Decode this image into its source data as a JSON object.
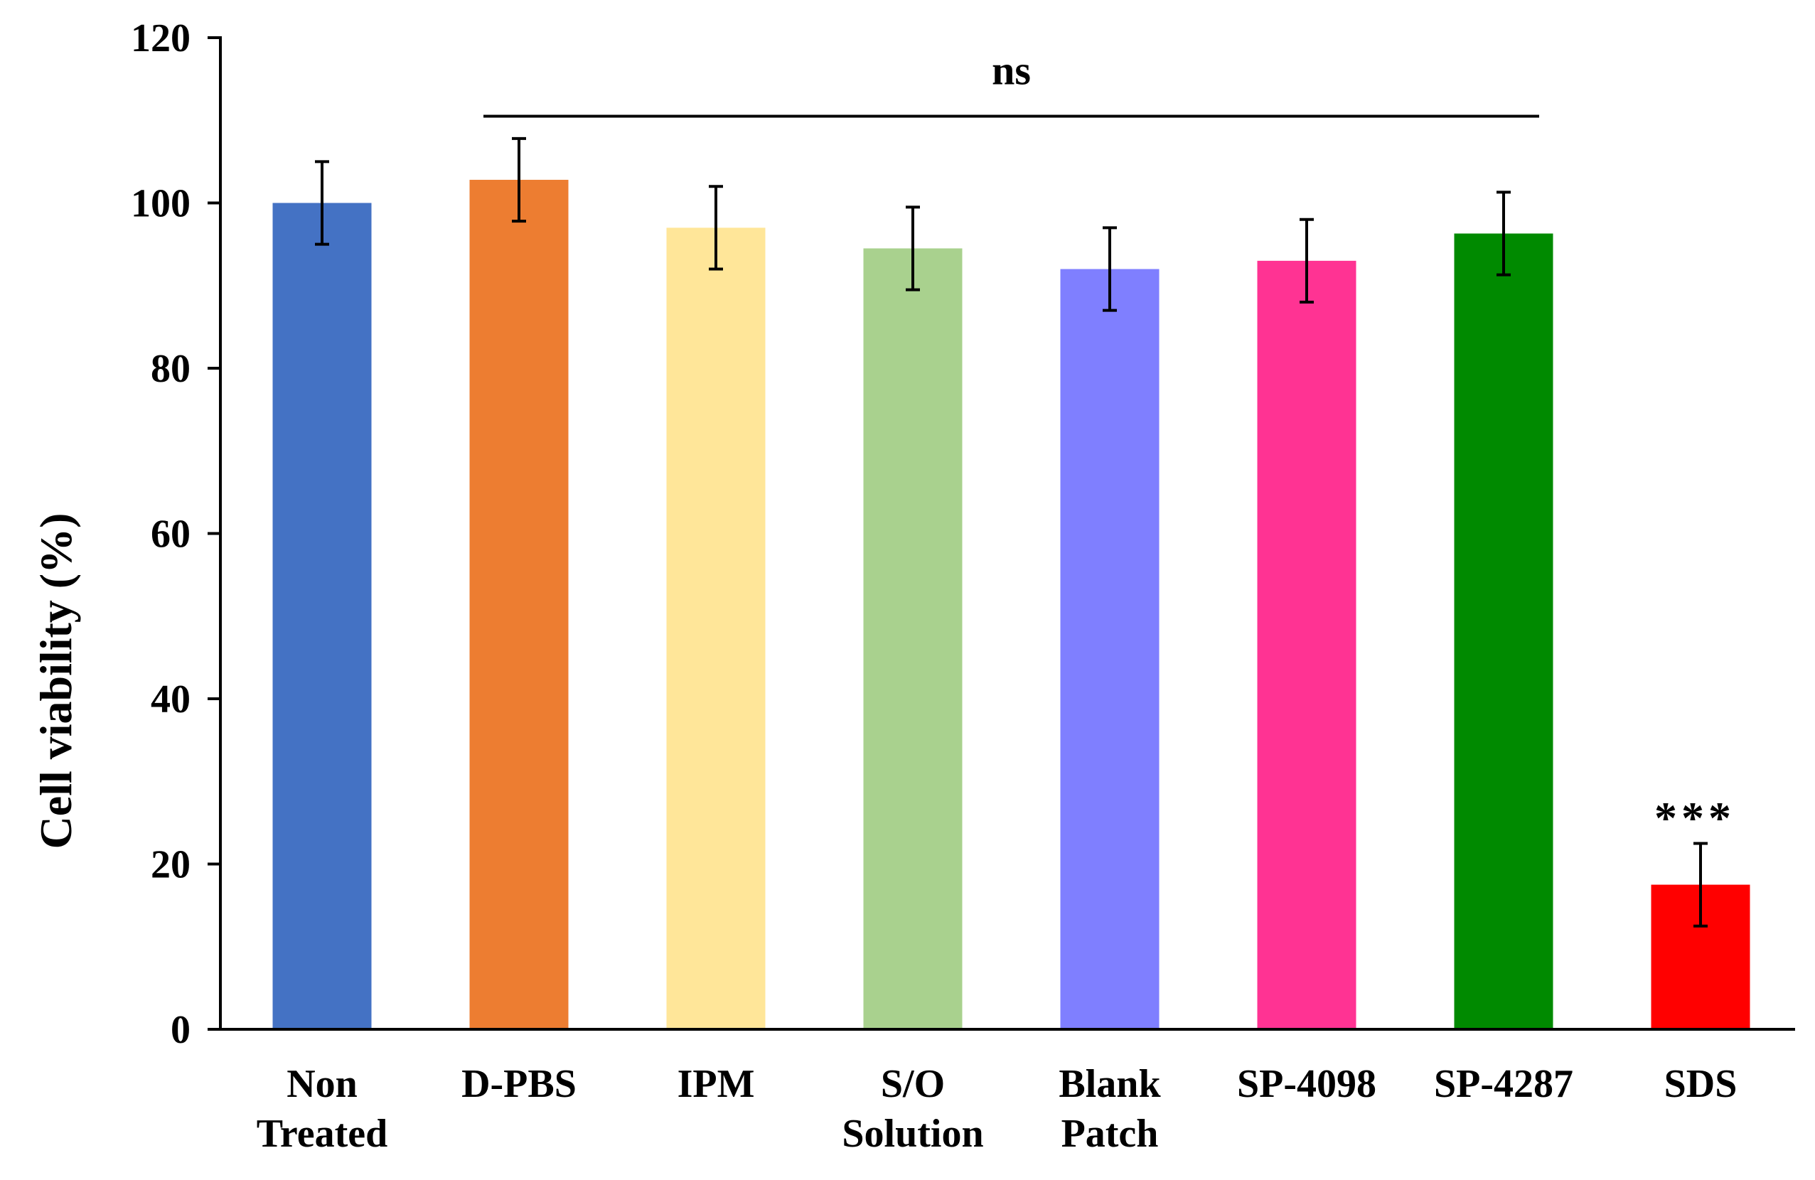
{
  "chart_data": {
    "type": "bar",
    "title": "",
    "xlabel": "",
    "ylabel": "Cell viability (%)",
    "ylim": [
      0,
      120
    ],
    "yticks": [
      0,
      20,
      40,
      60,
      80,
      100,
      120
    ],
    "yticks_labels": [
      "0",
      "20",
      "40",
      "60",
      "80",
      "100",
      "120"
    ],
    "categories": [
      [
        "Non",
        "Treated"
      ],
      [
        "D-PBS"
      ],
      [
        "IPM"
      ],
      [
        "S/O",
        "Solution"
      ],
      [
        "Blank",
        "Patch"
      ],
      [
        "SP-4098"
      ],
      [
        "SP-4287"
      ],
      [
        "SDS"
      ]
    ],
    "series": [
      {
        "name": "Cell viability",
        "values": [
          100,
          102.8,
          97,
          94.5,
          92,
          93,
          96.3,
          17.5
        ],
        "errors": [
          5,
          5,
          5,
          5,
          5,
          5,
          5,
          5
        ],
        "colors": [
          "#4472C4",
          "#ED7D31",
          "#FFE699",
          "#A9D18E",
          "#7F7FFF",
          "#FF3393",
          "#008A00",
          "#FF0000"
        ]
      }
    ],
    "annotations": [
      {
        "type": "bracket",
        "text": "ns",
        "from_category": 1,
        "to_category": 6,
        "y": 110.5
      },
      {
        "type": "marker",
        "text": "***",
        "category": 7,
        "y": 27
      }
    ],
    "grid": false,
    "legend": "none"
  }
}
